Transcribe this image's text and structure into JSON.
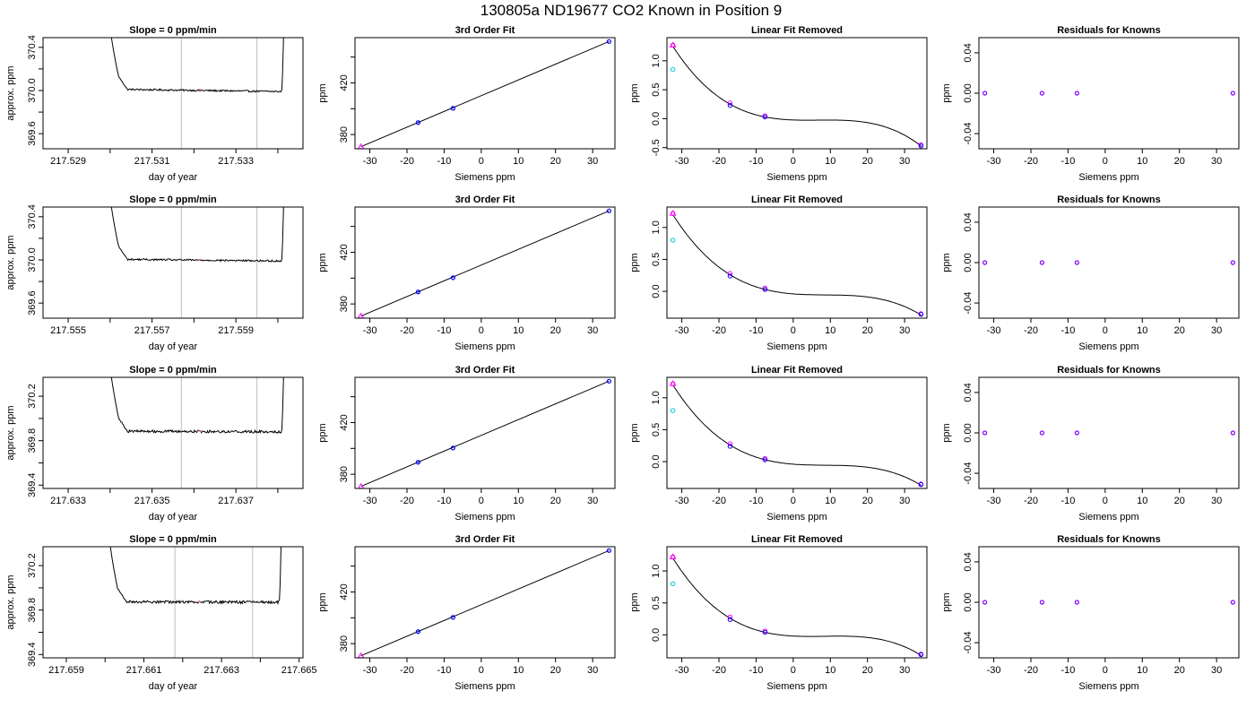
{
  "figure": {
    "title": "130805a     ND19677    CO2 Known in Position  9"
  },
  "colors": {
    "line": "#000000",
    "grid": "#c8c8c8",
    "blue": "#0000ff",
    "magenta": "#ff00ff",
    "cyan": "#00c8d8",
    "purple": "#8000ff",
    "pink": "#ff9090"
  },
  "chart_data": [
    {
      "type": "line",
      "row": 0,
      "col": 0,
      "title": "Slope =  0  ppm/min",
      "xlabel": "day of year",
      "ylabel": "approx. ppm",
      "xlim": [
        217.5284,
        217.5346
      ],
      "ylim": [
        369.46,
        370.49
      ],
      "xticks": [
        217.529,
        217.53,
        217.531,
        217.532,
        217.533,
        217.534
      ],
      "xtick_labels": [
        "217.529",
        "",
        "217.531",
        "",
        "217.533",
        ""
      ],
      "yticks": [
        369.6,
        369.8,
        370.0,
        370.2,
        370.4
      ],
      "ytick_labels": [
        "369.6",
        "",
        "370.0",
        "",
        "370.4"
      ],
      "vlines": [
        217.5317,
        217.5335
      ],
      "baseline": 369.995,
      "noise": 0.008,
      "trace": {
        "x_start": 217.52995,
        "x_end": 217.53415,
        "level_start": 370.01,
        "level_end": 369.99
      }
    },
    {
      "type": "scatter",
      "row": 0,
      "col": 1,
      "title": "3rd Order Fit",
      "xlabel": "Siemens ppm",
      "ylabel": "ppm",
      "xlim": [
        -34,
        36
      ],
      "ylim": [
        369,
        455
      ],
      "xticks": [
        -30,
        -20,
        -10,
        0,
        10,
        20,
        30
      ],
      "yticks": [
        380,
        400,
        420,
        440
      ],
      "ytick_labels": [
        "380",
        "",
        "420",
        ""
      ],
      "points": [
        [
          -32.4,
          370.6
        ],
        [
          -17.0,
          389.3
        ],
        [
          -7.6,
          400.3
        ],
        [
          34.4,
          452.0
        ]
      ],
      "fit_line": [
        [
          -32.4,
          370.6
        ],
        [
          34.4,
          452.0
        ]
      ]
    },
    {
      "type": "scatter",
      "row": 0,
      "col": 2,
      "title": "Linear Fit Removed",
      "xlabel": "Siemens ppm",
      "ylabel": "ppm",
      "xlim": [
        -34,
        36
      ],
      "ylim": [
        -0.52,
        1.4
      ],
      "xticks": [
        -30,
        -20,
        -10,
        0,
        10,
        20,
        30
      ],
      "yticks": [
        -0.5,
        0.0,
        0.5,
        1.0
      ],
      "ytick_labels": [
        "-0.5",
        "0.0",
        "0.5",
        "1.0"
      ],
      "cubic": {
        "a": 0.0,
        "b": -0.0325,
        "c": 0.0022,
        "d": -6.95e-05
      },
      "points_magenta": [
        [
          -32.4,
          1.27
        ],
        [
          -17.0,
          0.27
        ],
        [
          -7.6,
          0.05
        ],
        [
          34.4,
          -0.45
        ]
      ],
      "points_blue": [
        [
          -17.0,
          0.23
        ],
        [
          -7.6,
          0.03
        ],
        [
          34.4,
          -0.47
        ]
      ],
      "points_cyan": [
        [
          -32.4,
          0.85
        ]
      ]
    },
    {
      "type": "scatter",
      "row": 0,
      "col": 3,
      "title": "Residuals for Knowns",
      "xlabel": "Siemens ppm",
      "ylabel": "ppm",
      "xlim": [
        -34,
        36
      ],
      "ylim": [
        -0.055,
        0.055
      ],
      "xticks": [
        -30,
        -20,
        -10,
        0,
        10,
        20,
        30
      ],
      "yticks": [
        -0.04,
        0.0,
        0.04
      ],
      "ytick_labels": [
        "-0.04",
        "0.00",
        "0.04"
      ],
      "points": [
        [
          -32.4,
          0.0
        ],
        [
          -17.0,
          0.0
        ],
        [
          -7.6,
          0.0
        ],
        [
          34.4,
          0.0
        ]
      ]
    },
    {
      "type": "line",
      "row": 1,
      "col": 0,
      "title": "Slope =  0  ppm/min",
      "xlabel": "day of year",
      "ylabel": "approx. ppm",
      "xlim": [
        217.5544,
        217.5606
      ],
      "ylim": [
        369.46,
        370.49
      ],
      "xticks": [
        217.555,
        217.556,
        217.557,
        217.558,
        217.559,
        217.56
      ],
      "xtick_labels": [
        "217.555",
        "",
        "217.557",
        "",
        "217.559",
        ""
      ],
      "yticks": [
        369.6,
        369.8,
        370.0,
        370.2,
        370.4
      ],
      "ytick_labels": [
        "369.6",
        "",
        "370.0",
        "",
        "370.4"
      ],
      "vlines": [
        217.5577,
        217.5595
      ],
      "baseline": 369.995,
      "noise": 0.008,
      "trace": {
        "x_start": 217.55595,
        "x_end": 217.56015,
        "level_start": 370.005,
        "level_end": 369.99
      }
    },
    {
      "type": "scatter",
      "row": 1,
      "col": 1,
      "title": "3rd Order Fit",
      "xlabel": "Siemens ppm",
      "ylabel": "ppm",
      "xlim": [
        -34,
        36
      ],
      "ylim": [
        369,
        455
      ],
      "xticks": [
        -30,
        -20,
        -10,
        0,
        10,
        20,
        30
      ],
      "yticks": [
        380,
        400,
        420,
        440
      ],
      "ytick_labels": [
        "380",
        "",
        "420",
        ""
      ],
      "points": [
        [
          -32.4,
          370.6
        ],
        [
          -17.0,
          389.3
        ],
        [
          -7.6,
          400.3
        ],
        [
          34.4,
          452.0
        ]
      ],
      "fit_line": [
        [
          -32.4,
          370.6
        ],
        [
          34.4,
          452.0
        ]
      ]
    },
    {
      "type": "scatter",
      "row": 1,
      "col": 2,
      "title": "Linear Fit Removed",
      "xlabel": "Siemens ppm",
      "ylabel": "ppm",
      "xlim": [
        -34,
        36
      ],
      "ylim": [
        -0.42,
        1.32
      ],
      "xticks": [
        -30,
        -20,
        -10,
        0,
        10,
        20,
        30
      ],
      "yticks": [
        0.0,
        0.5,
        1.0
      ],
      "ytick_labels": [
        "0.0",
        "0.5",
        "1.0"
      ],
      "cubic": {
        "a": 0.0,
        "b": -0.0325,
        "c": 0.0022,
        "d": -6.95e-05
      },
      "points_magenta": [
        [
          -32.4,
          1.22
        ],
        [
          -17.0,
          0.28
        ],
        [
          -7.6,
          0.05
        ],
        [
          34.4,
          -0.35
        ]
      ],
      "points_blue": [
        [
          -17.0,
          0.24
        ],
        [
          -7.6,
          0.03
        ],
        [
          34.4,
          -0.36
        ]
      ],
      "points_cyan": [
        [
          -32.4,
          0.8
        ]
      ]
    },
    {
      "type": "scatter",
      "row": 1,
      "col": 3,
      "title": "Residuals for Knowns",
      "xlabel": "Siemens ppm",
      "ylabel": "ppm",
      "xlim": [
        -34,
        36
      ],
      "ylim": [
        -0.055,
        0.055
      ],
      "xticks": [
        -30,
        -20,
        -10,
        0,
        10,
        20,
        30
      ],
      "yticks": [
        -0.04,
        0.0,
        0.04
      ],
      "ytick_labels": [
        "-0.04",
        "0.00",
        "0.04"
      ],
      "points": [
        [
          -32.4,
          0.0
        ],
        [
          -17.0,
          0.0
        ],
        [
          -7.6,
          0.0
        ],
        [
          34.4,
          0.0
        ]
      ]
    },
    {
      "type": "line",
      "row": 2,
      "col": 0,
      "title": "Slope =  0  ppm/min",
      "xlabel": "day of year",
      "ylabel": "approx. ppm",
      "xlim": [
        217.6324,
        217.6386
      ],
      "ylim": [
        369.37,
        370.37
      ],
      "xticks": [
        217.633,
        217.634,
        217.635,
        217.636,
        217.637,
        217.638
      ],
      "xtick_labels": [
        "217.633",
        "",
        "217.635",
        "",
        "217.637",
        ""
      ],
      "yticks": [
        369.4,
        369.6,
        369.8,
        370.0,
        370.2
      ],
      "ytick_labels": [
        "369.4",
        "",
        "369.8",
        "",
        "370.2"
      ],
      "vlines": [
        217.6357,
        217.6375
      ],
      "baseline": 369.88,
      "noise": 0.012,
      "trace": {
        "x_start": 217.63395,
        "x_end": 217.63815,
        "level_start": 369.885,
        "level_end": 369.88
      }
    },
    {
      "type": "scatter",
      "row": 2,
      "col": 1,
      "title": "3rd Order Fit",
      "xlabel": "Siemens ppm",
      "ylabel": "ppm",
      "xlim": [
        -34,
        36
      ],
      "ylim": [
        369,
        455
      ],
      "xticks": [
        -30,
        -20,
        -10,
        0,
        10,
        20,
        30
      ],
      "yticks": [
        380,
        400,
        420,
        440
      ],
      "ytick_labels": [
        "380",
        "",
        "420",
        ""
      ],
      "points": [
        [
          -32.4,
          370.6
        ],
        [
          -17.0,
          389.3
        ],
        [
          -7.6,
          400.3
        ],
        [
          34.4,
          452.0
        ]
      ],
      "fit_line": [
        [
          -32.4,
          370.6
        ],
        [
          34.4,
          452.0
        ]
      ]
    },
    {
      "type": "scatter",
      "row": 2,
      "col": 2,
      "title": "Linear Fit Removed",
      "xlabel": "Siemens ppm",
      "ylabel": "ppm",
      "xlim": [
        -34,
        36
      ],
      "ylim": [
        -0.42,
        1.32
      ],
      "xticks": [
        -30,
        -20,
        -10,
        0,
        10,
        20,
        30
      ],
      "yticks": [
        0.0,
        0.5,
        1.0
      ],
      "ytick_labels": [
        "0.0",
        "0.5",
        "1.0"
      ],
      "cubic": {
        "a": 0.0,
        "b": -0.0325,
        "c": 0.0022,
        "d": -6.95e-05
      },
      "points_magenta": [
        [
          -32.4,
          1.22
        ],
        [
          -17.0,
          0.28
        ],
        [
          -7.6,
          0.05
        ],
        [
          34.4,
          -0.35
        ]
      ],
      "points_blue": [
        [
          -17.0,
          0.24
        ],
        [
          -7.6,
          0.03
        ],
        [
          34.4,
          -0.36
        ]
      ],
      "points_cyan": [
        [
          -32.4,
          0.8
        ]
      ]
    },
    {
      "type": "scatter",
      "row": 2,
      "col": 3,
      "title": "Residuals for Knowns",
      "xlabel": "Siemens ppm",
      "ylabel": "ppm",
      "xlim": [
        -34,
        36
      ],
      "ylim": [
        -0.055,
        0.055
      ],
      "xticks": [
        -30,
        -20,
        -10,
        0,
        10,
        20,
        30
      ],
      "yticks": [
        -0.04,
        0.0,
        0.04
      ],
      "ytick_labels": [
        "-0.04",
        "0.00",
        "0.04"
      ],
      "points": [
        [
          -32.4,
          0.0
        ],
        [
          -17.0,
          0.0
        ],
        [
          -7.6,
          0.0
        ],
        [
          34.4,
          0.0
        ]
      ]
    },
    {
      "type": "line",
      "row": 3,
      "col": 0,
      "title": "Slope =  0  ppm/min",
      "xlabel": "day of year",
      "ylabel": "approx. ppm",
      "xlim": [
        217.6584,
        217.6651
      ],
      "ylim": [
        369.37,
        370.37
      ],
      "xticks": [
        217.659,
        217.66,
        217.661,
        217.662,
        217.663,
        217.664,
        217.665
      ],
      "xtick_labels": [
        "217.659",
        "",
        "217.661",
        "",
        "217.663",
        "",
        "217.665"
      ],
      "yticks": [
        369.4,
        369.6,
        369.8,
        370.0,
        370.2
      ],
      "ytick_labels": [
        "369.4",
        "",
        "369.8",
        "",
        "370.2"
      ],
      "vlines": [
        217.6618,
        217.6638
      ],
      "baseline": 369.87,
      "noise": 0.012,
      "trace": {
        "x_start": 217.66005,
        "x_end": 217.66455,
        "level_start": 369.875,
        "level_end": 369.87
      }
    },
    {
      "type": "scatter",
      "row": 3,
      "col": 1,
      "title": "3rd Order Fit",
      "xlabel": "Siemens ppm",
      "ylabel": "ppm",
      "xlim": [
        -34,
        36
      ],
      "ylim": [
        369,
        455
      ],
      "xticks": [
        -30,
        -20,
        -10,
        0,
        10,
        20,
        30
      ],
      "yticks": [
        380,
        400,
        420,
        440
      ],
      "ytick_labels": [
        "380",
        "",
        "420",
        ""
      ],
      "points": [
        [
          -32.4,
          370.6
        ],
        [
          -17.0,
          389.3
        ],
        [
          -7.6,
          400.3
        ],
        [
          34.4,
          452.0
        ]
      ],
      "fit_line": [
        [
          -32.4,
          370.6
        ],
        [
          34.4,
          452.0
        ]
      ]
    },
    {
      "type": "scatter",
      "row": 3,
      "col": 2,
      "title": "Linear Fit Removed",
      "xlabel": "Siemens ppm",
      "ylabel": "ppm",
      "xlim": [
        -34,
        36
      ],
      "ylim": [
        -0.36,
        1.38
      ],
      "xticks": [
        -30,
        -20,
        -10,
        0,
        10,
        20,
        30
      ],
      "yticks": [
        0.0,
        0.5,
        1.0
      ],
      "ytick_labels": [
        "0.0",
        "0.5",
        "1.0"
      ],
      "cubic": {
        "a": 0.0,
        "b": -0.0325,
        "c": 0.0022,
        "d": -6.95e-05
      },
      "points_magenta": [
        [
          -32.4,
          1.22
        ],
        [
          -17.0,
          0.28
        ],
        [
          -7.6,
          0.06
        ],
        [
          34.4,
          -0.3
        ]
      ],
      "points_blue": [
        [
          -17.0,
          0.24
        ],
        [
          -7.6,
          0.04
        ],
        [
          34.4,
          -0.31
        ]
      ],
      "points_cyan": [
        [
          -32.4,
          0.8
        ]
      ]
    },
    {
      "type": "scatter",
      "row": 3,
      "col": 3,
      "title": "Residuals for Knowns",
      "xlabel": "Siemens ppm",
      "ylabel": "ppm",
      "xlim": [
        -34,
        36
      ],
      "ylim": [
        -0.055,
        0.055
      ],
      "xticks": [
        -30,
        -20,
        -10,
        0,
        10,
        20,
        30
      ],
      "yticks": [
        -0.04,
        0.0,
        0.04
      ],
      "ytick_labels": [
        "-0.04",
        "0.00",
        "0.04"
      ],
      "points": [
        [
          -32.4,
          0.0
        ],
        [
          -17.0,
          0.0
        ],
        [
          -7.6,
          0.0
        ],
        [
          34.4,
          0.0
        ]
      ]
    }
  ]
}
